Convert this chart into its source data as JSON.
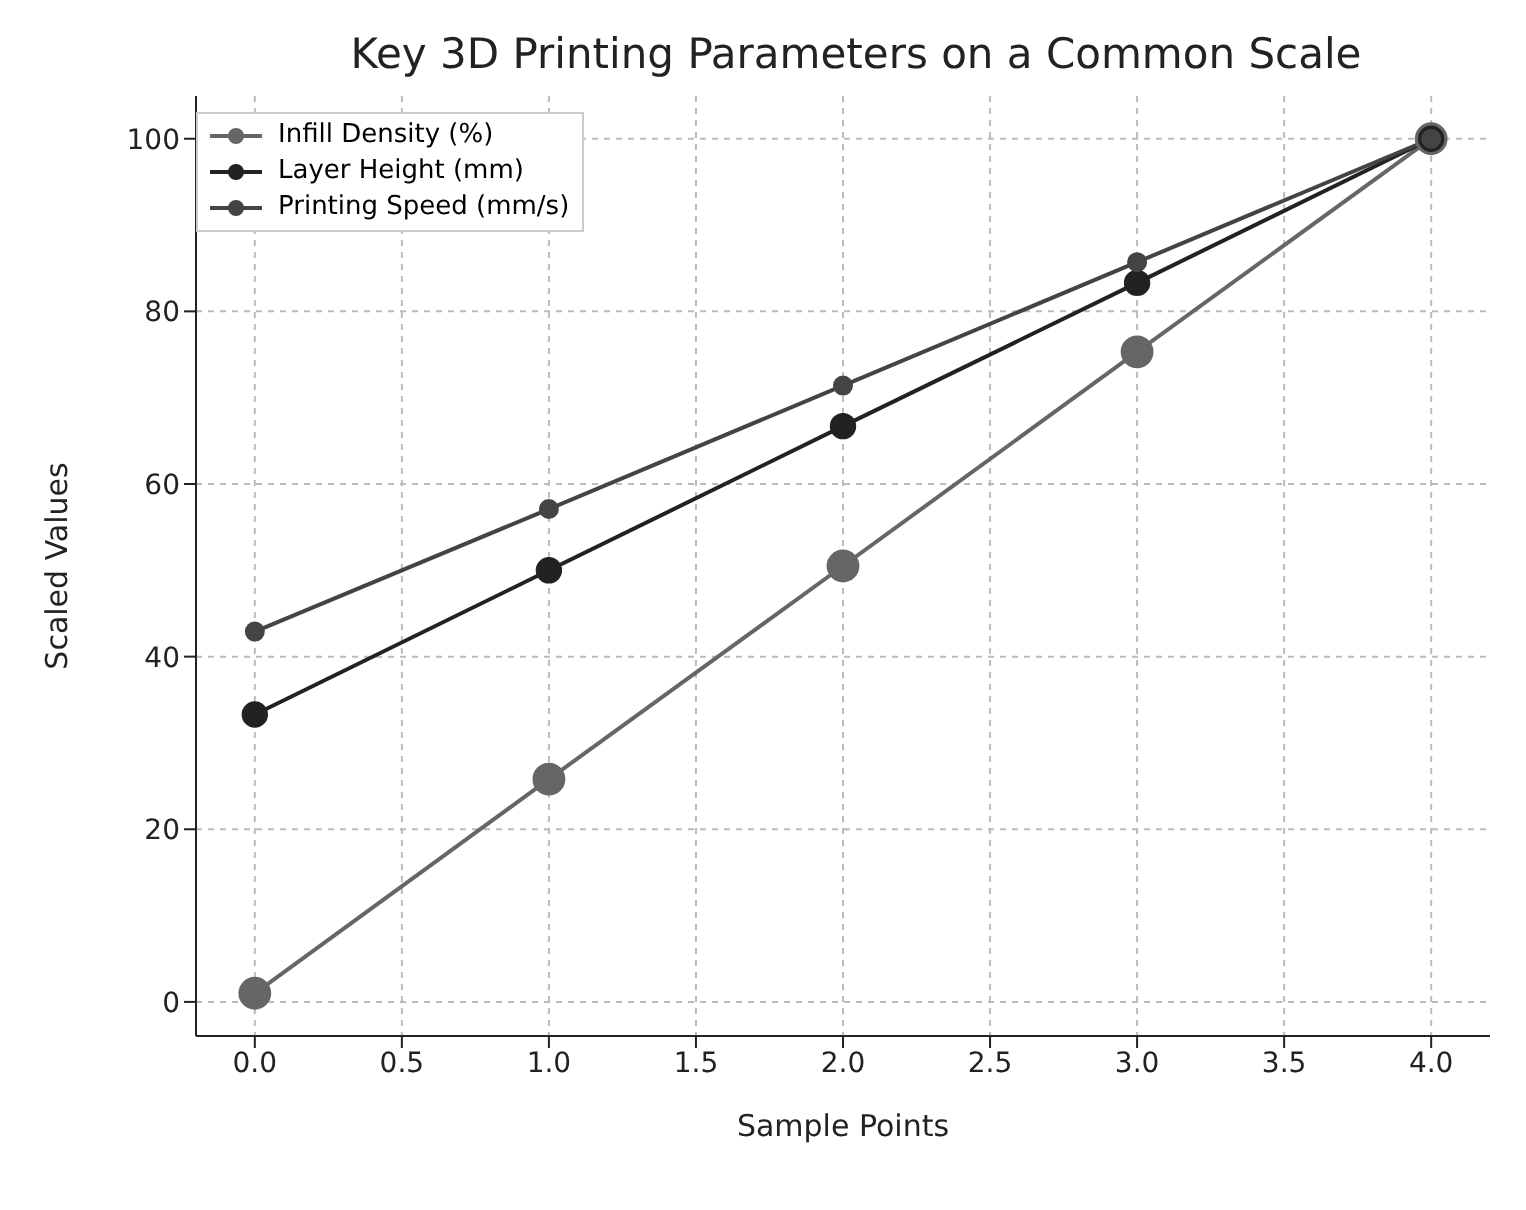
{
  "chart_data": {
    "type": "line",
    "title": "Key 3D Printing Parameters on a Common Scale",
    "xlabel": "Sample Points",
    "ylabel": "Scaled Values",
    "x": [
      0,
      1,
      2,
      3,
      4
    ],
    "series": [
      {
        "name": "Infill Density (%)",
        "color": "#666666",
        "values": [
          1,
          25.8,
          50.5,
          75.3,
          100
        ]
      },
      {
        "name": "Layer Height (mm)",
        "color": "#222222",
        "values": [
          33.3,
          50,
          66.7,
          83.3,
          100
        ]
      },
      {
        "name": "Printing Speed (mm/s)",
        "color": "#444444",
        "values": [
          42.9,
          57.1,
          71.4,
          85.7,
          100
        ]
      }
    ],
    "xlim": [
      -0.2,
      4.2
    ],
    "xticks": [
      {
        "value": 0,
        "label": "0.0"
      },
      {
        "value": 0.5,
        "label": "0.5"
      },
      {
        "value": 1,
        "label": "1.0"
      },
      {
        "value": 1.5,
        "label": "1.5"
      },
      {
        "value": 2,
        "label": "2.0"
      },
      {
        "value": 2.5,
        "label": "2.5"
      },
      {
        "value": 3,
        "label": "3.0"
      },
      {
        "value": 3.5,
        "label": "3.5"
      },
      {
        "value": 4,
        "label": "4.0"
      }
    ],
    "ylim": [
      -3.95,
      104.95
    ],
    "yticks": [
      0,
      20,
      40,
      60,
      80,
      100
    ],
    "grid": true,
    "legend": "top left",
    "marker": "circle",
    "line_style": "solid"
  }
}
